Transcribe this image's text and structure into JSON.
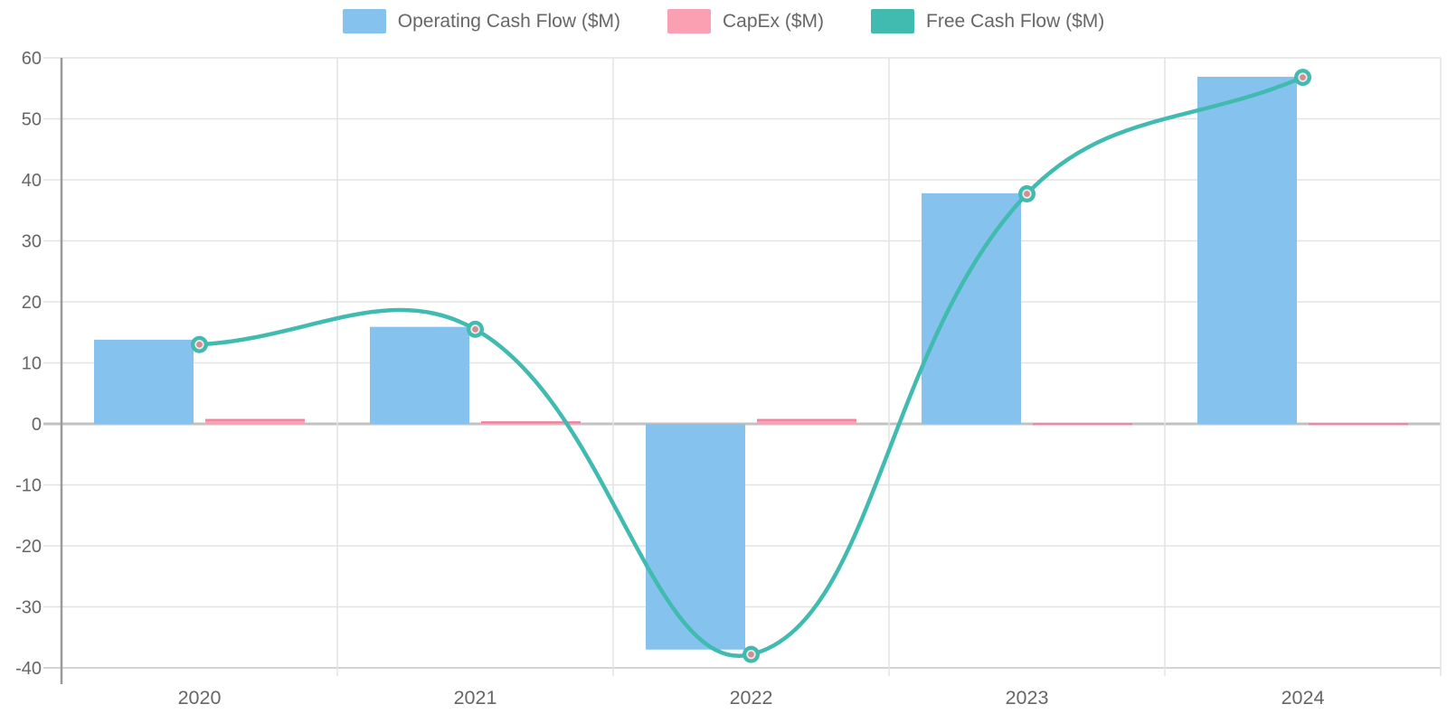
{
  "chart_data": {
    "type": "combo",
    "title": "",
    "categories": [
      "2020",
      "2021",
      "2022",
      "2023",
      "2024"
    ],
    "series": [
      {
        "name": "Operating Cash Flow ($M)",
        "type": "bar",
        "color": "#85c3ee",
        "values": [
          13.8,
          15.9,
          -37.0,
          37.8,
          56.9
        ]
      },
      {
        "name": "CapEx ($M)",
        "type": "bar",
        "color": "#f9a0b3",
        "border_color": "#ef7f9f",
        "values": [
          0.8,
          0.4,
          0.8,
          0.1,
          0.1
        ]
      },
      {
        "name": "Free Cash Flow ($M)",
        "type": "line",
        "color": "#41bab0",
        "marker_inner_color": "#cf8e90",
        "marker_halo_color": "#f3e9e9",
        "values": [
          13.0,
          15.5,
          -37.8,
          37.7,
          56.8
        ]
      }
    ],
    "xlabel": "",
    "ylabel": "",
    "ylim": [
      -40,
      60
    ],
    "ytick_step": 10,
    "ytick_labels": [
      "-40",
      "-30",
      "-20",
      "-10",
      "0",
      "10",
      "20",
      "30",
      "40",
      "50",
      "60"
    ],
    "grid": true,
    "legend_position": "top",
    "line_tension": 0.4,
    "colors": {
      "axis_line": "#9a9a9a",
      "grid_line": "#e3e3e3",
      "zero_line": "#c2c2c2",
      "bottom_line": "#d4d4d4",
      "tick_label": "#666666"
    }
  }
}
